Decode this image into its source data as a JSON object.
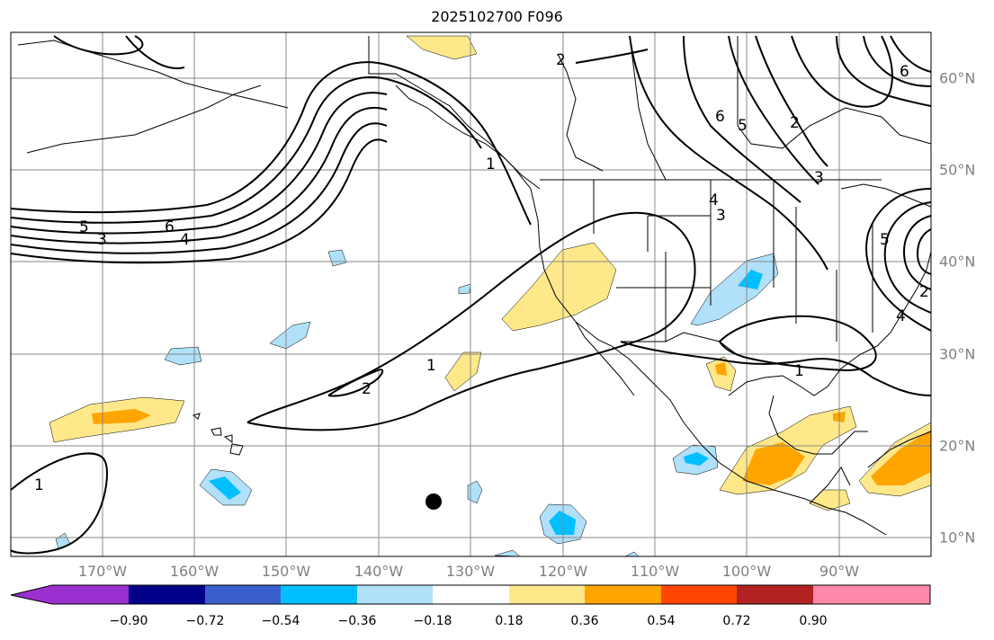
{
  "title": "2025102700 F096",
  "longitude_labels": [
    "170°W",
    "160°W",
    "150°W",
    "140°W",
    "130°W",
    "120°W",
    "110°W",
    "100°W",
    "90°W"
  ],
  "latitude_labels": [
    "60°N",
    "50°N",
    "40°N",
    "30°N",
    "20°N",
    "10°N"
  ],
  "contour_labels": [
    "1",
    "1",
    "1",
    "2",
    "2",
    "2",
    "3",
    "3",
    "3",
    "4",
    "4",
    "4",
    "5",
    "5",
    "5",
    "6",
    "6",
    "6",
    "1",
    "2"
  ],
  "colorbar": {
    "tick_labels": [
      "−0.90",
      "−0.72",
      "−0.54",
      "−0.36",
      "−0.18",
      "0.18",
      "0.36",
      "0.54",
      "0.72",
      "0.90"
    ],
    "colors": [
      "#9b30d0",
      "#00008b",
      "#3a5fcd",
      "#00bfff",
      "#b0e0fa",
      "#ffffff",
      "#ffe88a",
      "#ffa500",
      "#ff4500",
      "#b22222",
      "#ff88aa"
    ]
  },
  "marker": {
    "label": "black dot",
    "lon": -134,
    "lat": 14
  },
  "colors": {
    "grid": "#888888",
    "contour": "#000000",
    "positive_light": "#ffe88a",
    "positive_mid": "#ffa500",
    "negative_light": "#b0e0fa",
    "negative_mid": "#00bfff"
  }
}
